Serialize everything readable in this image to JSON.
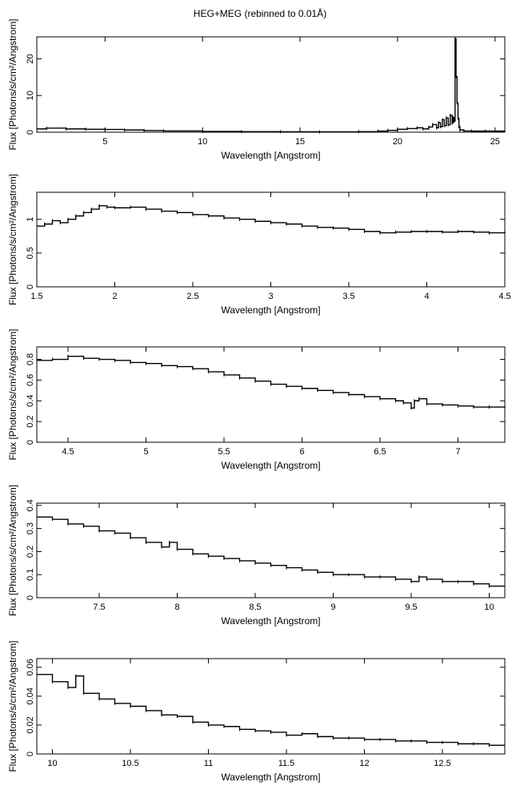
{
  "title": "HEG+MEG (rebinned to 0.01Å)",
  "chart_data": [
    {
      "type": "line",
      "xlabel": "Wavelength [Angstrom]",
      "ylabel": "Flux [Photons/s/cm²/Angstrom]",
      "xlim": [
        1.5,
        25.5
      ],
      "ylim": [
        0,
        26
      ],
      "xticks": [
        5,
        10,
        15,
        20,
        25
      ],
      "yticks": [
        0,
        10,
        20
      ],
      "series": [
        {
          "x": [
            1.5,
            2,
            3,
            4,
            5,
            6,
            7,
            8,
            10,
            12,
            14,
            16,
            18,
            19,
            19.5,
            20,
            20.5,
            21,
            21.3,
            21.6,
            21.8,
            22,
            22.1,
            22.2,
            22.3,
            22.4,
            22.5,
            22.6,
            22.7,
            22.8,
            22.85,
            22.9,
            22.95,
            23.0,
            23.05,
            23.1,
            23.15,
            23.2,
            23.4,
            23.8,
            24.5,
            25.5
          ],
          "y": [
            0.9,
            1.1,
            0.9,
            0.8,
            0.75,
            0.6,
            0.45,
            0.35,
            0.2,
            0.15,
            0.12,
            0.1,
            0.15,
            0.3,
            0.5,
            0.8,
            1.0,
            1.2,
            0.9,
            1.4,
            2.1,
            1.2,
            2.6,
            1.5,
            3.4,
            1.8,
            3.9,
            2.0,
            4.6,
            2.5,
            4.0,
            3.0,
            25.5,
            15.2,
            8.0,
            3.8,
            1.5,
            0.6,
            0.35,
            0.3,
            0.3,
            0.4
          ]
        }
      ]
    },
    {
      "type": "line",
      "xlabel": "Wavelength [Angstrom]",
      "ylabel": "Flux [Photons/s/cm²/Angstrom]",
      "xlim": [
        1.5,
        4.5
      ],
      "ylim": [
        0,
        1.4
      ],
      "xticks": [
        1.5,
        2,
        2.5,
        3,
        3.5,
        4,
        4.5
      ],
      "yticks": [
        0,
        0.5,
        1
      ],
      "series": [
        {
          "x": [
            1.5,
            1.55,
            1.6,
            1.65,
            1.7,
            1.75,
            1.8,
            1.85,
            1.9,
            1.95,
            2.0,
            2.1,
            2.2,
            2.3,
            2.4,
            2.5,
            2.6,
            2.7,
            2.8,
            2.9,
            3.0,
            3.1,
            3.2,
            3.3,
            3.4,
            3.5,
            3.6,
            3.7,
            3.8,
            3.9,
            4.0,
            4.1,
            4.2,
            4.3,
            4.4,
            4.5
          ],
          "y": [
            0.9,
            0.93,
            0.98,
            0.95,
            1.0,
            1.05,
            1.1,
            1.15,
            1.2,
            1.18,
            1.17,
            1.18,
            1.15,
            1.12,
            1.1,
            1.07,
            1.05,
            1.02,
            1.0,
            0.97,
            0.95,
            0.93,
            0.9,
            0.88,
            0.87,
            0.85,
            0.82,
            0.8,
            0.81,
            0.82,
            0.82,
            0.81,
            0.82,
            0.81,
            0.8,
            0.82
          ]
        }
      ]
    },
    {
      "type": "line",
      "xlabel": "Wavelength [Angstrom]",
      "ylabel": "Flux [Photons/s/cm²/Angstrom]",
      "xlim": [
        4.3,
        7.3
      ],
      "ylim": [
        0,
        0.92
      ],
      "xticks": [
        4.5,
        5,
        5.5,
        6,
        6.5,
        7
      ],
      "yticks": [
        0,
        0.2,
        0.4,
        0.6,
        0.8
      ],
      "series": [
        {
          "x": [
            4.3,
            4.4,
            4.5,
            4.6,
            4.7,
            4.8,
            4.9,
            5.0,
            5.1,
            5.2,
            5.3,
            5.4,
            5.5,
            5.6,
            5.7,
            5.8,
            5.9,
            6.0,
            6.1,
            6.2,
            6.3,
            6.4,
            6.5,
            6.6,
            6.65,
            6.7,
            6.72,
            6.75,
            6.8,
            6.9,
            7.0,
            7.1,
            7.2,
            7.3
          ],
          "y": [
            0.79,
            0.8,
            0.83,
            0.81,
            0.8,
            0.79,
            0.77,
            0.76,
            0.74,
            0.73,
            0.71,
            0.68,
            0.65,
            0.62,
            0.59,
            0.56,
            0.54,
            0.52,
            0.5,
            0.48,
            0.46,
            0.44,
            0.42,
            0.4,
            0.38,
            0.33,
            0.4,
            0.42,
            0.37,
            0.36,
            0.35,
            0.34,
            0.34,
            0.33
          ]
        }
      ]
    },
    {
      "type": "line",
      "xlabel": "Wavelength [Angstrom]",
      "ylabel": "Flux [Photons/s/cm²/Angstrom]",
      "xlim": [
        7.1,
        10.1
      ],
      "ylim": [
        0,
        0.41
      ],
      "xticks": [
        7.5,
        8,
        8.5,
        9,
        9.5,
        10
      ],
      "yticks": [
        0,
        0.1,
        0.2,
        0.3,
        0.4
      ],
      "series": [
        {
          "x": [
            7.1,
            7.2,
            7.3,
            7.4,
            7.5,
            7.6,
            7.7,
            7.8,
            7.9,
            7.95,
            8.0,
            8.1,
            8.2,
            8.3,
            8.4,
            8.5,
            8.6,
            8.7,
            8.8,
            8.9,
            9.0,
            9.1,
            9.2,
            9.3,
            9.4,
            9.5,
            9.55,
            9.6,
            9.7,
            9.8,
            9.9,
            10.0,
            10.1
          ],
          "y": [
            0.35,
            0.34,
            0.32,
            0.31,
            0.29,
            0.28,
            0.26,
            0.24,
            0.22,
            0.24,
            0.21,
            0.19,
            0.18,
            0.17,
            0.16,
            0.15,
            0.14,
            0.13,
            0.12,
            0.11,
            0.1,
            0.1,
            0.09,
            0.09,
            0.08,
            0.07,
            0.09,
            0.08,
            0.07,
            0.07,
            0.06,
            0.05,
            0.05
          ]
        }
      ]
    },
    {
      "type": "line",
      "xlabel": "Wavelength [Angstrom]",
      "ylabel": "Flux [Photons/s/cm²/Angstrom]",
      "xlim": [
        9.9,
        12.9
      ],
      "ylim": [
        0,
        0.066
      ],
      "xticks": [
        10,
        10.5,
        11,
        11.5,
        12,
        12.5
      ],
      "yticks": [
        0,
        0.02,
        0.04,
        0.06
      ],
      "series": [
        {
          "x": [
            9.9,
            10.0,
            10.1,
            10.15,
            10.2,
            10.3,
            10.4,
            10.5,
            10.6,
            10.7,
            10.8,
            10.9,
            11.0,
            11.1,
            11.2,
            11.3,
            11.4,
            11.5,
            11.6,
            11.7,
            11.8,
            11.9,
            12.0,
            12.1,
            12.2,
            12.3,
            12.4,
            12.5,
            12.6,
            12.7,
            12.8,
            12.9
          ],
          "y": [
            0.055,
            0.05,
            0.046,
            0.054,
            0.042,
            0.038,
            0.035,
            0.033,
            0.03,
            0.027,
            0.026,
            0.022,
            0.02,
            0.019,
            0.017,
            0.016,
            0.015,
            0.013,
            0.014,
            0.012,
            0.011,
            0.011,
            0.01,
            0.01,
            0.009,
            0.009,
            0.008,
            0.008,
            0.007,
            0.007,
            0.006,
            0.006
          ]
        }
      ]
    }
  ]
}
